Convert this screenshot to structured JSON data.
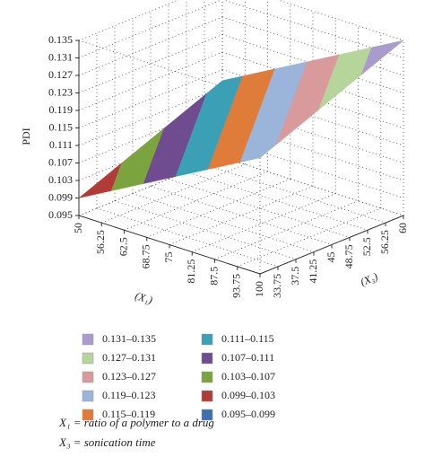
{
  "chart_data": {
    "type": "surface3d",
    "z_label": "PDI",
    "x_label": "(X₁)",
    "y_label": "(X₃)",
    "xlim": [
      50,
      100
    ],
    "xticks": [
      50,
      56.25,
      62.5,
      68.75,
      75,
      81.25,
      87.5,
      93.75,
      100
    ],
    "ylim": [
      30,
      60
    ],
    "yticks": [
      33.75,
      37.5,
      41.25,
      45,
      48.75,
      52.5,
      56.25,
      60
    ],
    "zlim": [
      0.095,
      0.135
    ],
    "zticks": [
      0.095,
      0.099,
      0.103,
      0.107,
      0.111,
      0.115,
      0.119,
      0.123,
      0.127,
      0.131,
      0.135
    ],
    "grid": true,
    "x": [
      50,
      62.5,
      75,
      87.5,
      100
    ],
    "y": [
      30,
      37.5,
      45,
      52.5,
      60
    ],
    "z": [
      [
        0.099,
        0.102375,
        0.10575,
        0.109125,
        0.1125
      ],
      [
        0.104625,
        0.108,
        0.111375,
        0.11475,
        0.118125
      ],
      [
        0.11025,
        0.113625,
        0.117,
        0.120375,
        0.12375
      ],
      [
        0.115875,
        0.11925,
        0.122625,
        0.126,
        0.129375
      ],
      [
        0.1215,
        0.124875,
        0.12825,
        0.131625,
        0.135
      ]
    ],
    "bands": [
      {
        "range": [
          0.131,
          0.135
        ],
        "label": "0.131–0.135",
        "color": "#a99ccc"
      },
      {
        "range": [
          0.127,
          0.131
        ],
        "label": "0.127–0.131",
        "color": "#b6d59b"
      },
      {
        "range": [
          0.123,
          0.127
        ],
        "label": "0.123–0.127",
        "color": "#d89a9a"
      },
      {
        "range": [
          0.119,
          0.123
        ],
        "label": "0.119–0.123",
        "color": "#9bb4da"
      },
      {
        "range": [
          0.115,
          0.119
        ],
        "label": "0.115–0.119",
        "color": "#e07c3a"
      },
      {
        "range": [
          0.111,
          0.115
        ],
        "label": "0.111–0.115",
        "color": "#3ba0b6"
      },
      {
        "range": [
          0.107,
          0.111
        ],
        "label": "0.107–0.111",
        "color": "#6f4c8f"
      },
      {
        "range": [
          0.103,
          0.107
        ],
        "label": "0.103–0.107",
        "color": "#7ba43f"
      },
      {
        "range": [
          0.099,
          0.103
        ],
        "label": "0.099–0.103",
        "color": "#b13b37"
      },
      {
        "range": [
          0.095,
          0.099
        ],
        "label": "0.095–0.099",
        "color": "#3e70b1"
      }
    ],
    "notes": [
      "X₁ = ratio of a polymer to a drug",
      "X₃ = sonication time"
    ]
  }
}
